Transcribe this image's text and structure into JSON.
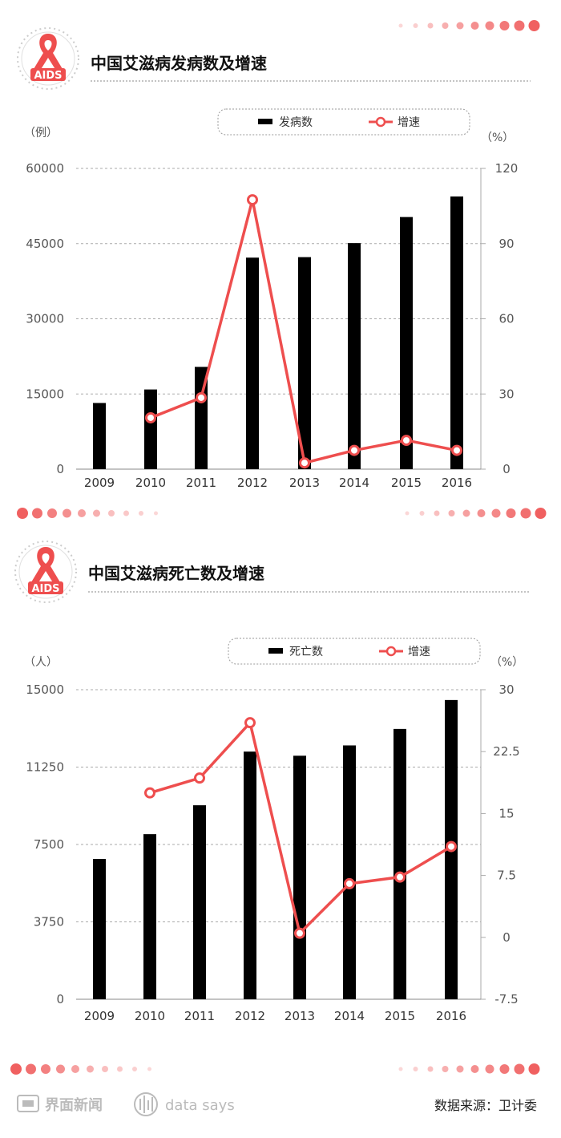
{
  "colors": {
    "bar": "#000000",
    "line": "#ee4e4e",
    "dots": "#f06060",
    "grid": "#aaaaaa",
    "axis_text": "#555555"
  },
  "charts": [
    {
      "title": "中国艾滋病发病数及增速",
      "badge_text": "AIDS",
      "left_unit": "（例）",
      "right_unit": "（%）",
      "legend": {
        "bar_label": "发病数",
        "line_label": "增速"
      }
    },
    {
      "title": "中国艾滋病死亡数及增速",
      "badge_text": "AIDS",
      "left_unit": "（人）",
      "right_unit": "（%）",
      "legend": {
        "bar_label": "死亡数",
        "line_label": "增速"
      }
    }
  ],
  "chart_data": [
    {
      "type": "bar+line",
      "categories": [
        "2009",
        "2010",
        "2011",
        "2012",
        "2013",
        "2014",
        "2015",
        "2016"
      ],
      "series": [
        {
          "name": "发病数",
          "type": "bar",
          "axis": "left",
          "values": [
            13200,
            15900,
            20400,
            42200,
            42300,
            45100,
            50300,
            54400
          ]
        },
        {
          "name": "增速",
          "type": "line",
          "axis": "right",
          "values": [
            null,
            20.5,
            28.5,
            107.5,
            2.5,
            7.5,
            11.5,
            7.5
          ]
        }
      ],
      "y_left": {
        "ticks": [
          "0",
          "15000",
          "30000",
          "45000",
          "60000"
        ],
        "range": [
          0,
          60000
        ]
      },
      "y_right": {
        "ticks": [
          "0",
          "30",
          "60",
          "90",
          "120"
        ],
        "range": [
          0,
          120
        ]
      },
      "grid": true
    },
    {
      "type": "bar+line",
      "categories": [
        "2009",
        "2010",
        "2011",
        "2012",
        "2013",
        "2014",
        "2015",
        "2016"
      ],
      "series": [
        {
          "name": "死亡数",
          "type": "bar",
          "axis": "left",
          "values": [
            6800,
            8000,
            9400,
            12000,
            11800,
            12300,
            13100,
            14500
          ]
        },
        {
          "name": "增速",
          "type": "line",
          "axis": "right",
          "values": [
            null,
            17.5,
            19.3,
            26.0,
            0.5,
            6.5,
            7.3,
            11.0
          ]
        }
      ],
      "y_left": {
        "ticks": [
          "0",
          "3750",
          "7500",
          "11250",
          "15000"
        ],
        "range": [
          0,
          15000
        ]
      },
      "y_right": {
        "ticks": [
          "-7.5",
          "0",
          "7.5",
          "15",
          "22.5",
          "30"
        ],
        "range": [
          -7.5,
          30
        ]
      },
      "grid": true
    }
  ],
  "footer": {
    "brand_name": "界面新闻",
    "brand2": "data says",
    "source": "数据来源：卫计委"
  }
}
